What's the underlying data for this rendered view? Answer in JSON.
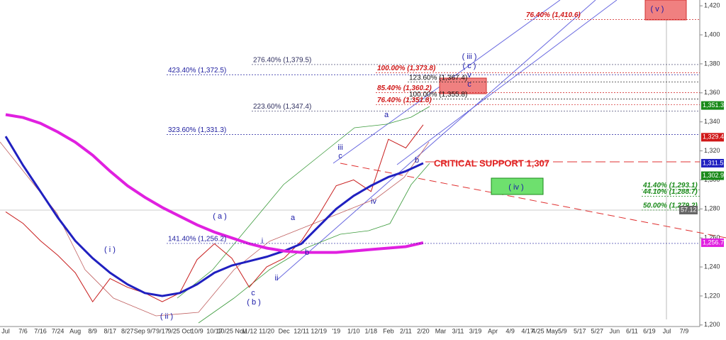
{
  "chart_data": {
    "type": "line",
    "x": [
      "Jul",
      "7/6",
      "7/16",
      "7/24",
      "Aug",
      "8/9",
      "8/17",
      "8/27",
      "Sep 9/7",
      "9/17",
      "9/25 Oct",
      "10/9",
      "10/17",
      "10/25 Nov",
      "11/12",
      "11/20",
      "Dec",
      "12/11",
      "12/19",
      "'19",
      "1/10",
      "1/18",
      "Feb",
      "2/11",
      "2/20",
      "Mar",
      "3/11",
      "3/19",
      "Apr",
      "4/9",
      "4/17",
      "4/25 May",
      "5/9",
      "5/17",
      "5/27",
      "Jun",
      "6/11",
      "6/19",
      "Jul",
      "7/9"
    ],
    "series": [
      {
        "color": "#c81e1e",
        "values": [
          1278,
          1270,
          1258,
          1248,
          1236,
          1216,
          1232,
          1226,
          1222,
          1216,
          1222,
          1245,
          1256,
          1246,
          1226,
          1240,
          1246,
          1258,
          1276,
          1296,
          1300,
          1292,
          1328,
          1322,
          1338,
          null,
          null,
          null,
          null,
          null,
          null,
          null,
          null,
          null,
          null,
          null,
          null,
          null,
          null,
          null
        ]
      },
      {
        "color": "#2020c0",
        "values": [
          1330,
          1310,
          1292,
          1274,
          1258,
          1246,
          1236,
          1228,
          1222,
          1220,
          1222,
          1228,
          1236,
          1241,
          1244,
          1247,
          1251,
          1256,
          1268,
          1280,
          1289,
          1296,
          1302,
          1306,
          1311.5,
          null,
          null,
          null,
          null,
          null,
          null,
          null,
          null,
          null,
          null,
          null,
          null,
          null,
          null,
          null
        ]
      },
      {
        "color": "#e020e0",
        "values": [
          1345,
          1343,
          1339,
          1333,
          1326,
          1317,
          1306,
          1296,
          1288,
          1281,
          1275,
          1269,
          1264,
          1260,
          1256,
          1253,
          1251,
          1250,
          1250,
          1250,
          1251,
          1252,
          1253,
          1254,
          1256.7,
          null,
          null,
          null,
          null,
          null,
          null,
          null,
          null,
          null,
          null,
          null,
          null,
          null,
          null,
          null
        ]
      }
    ],
    "ylim": [
      1196,
      1424
    ],
    "yticks": [
      {
        "value": 1200,
        "label": "1,200"
      },
      {
        "value": 1220,
        "label": "1,220"
      },
      {
        "value": 1240,
        "label": "1,240"
      },
      {
        "value": 1260,
        "label": "1,260"
      },
      {
        "value": 1280,
        "label": "1,280"
      },
      {
        "value": 1300,
        "label": "1,300"
      },
      {
        "value": 1320,
        "label": "1,320"
      },
      {
        "value": 1340,
        "label": "1,340"
      },
      {
        "value": 1360,
        "label": "1,360"
      },
      {
        "value": 1380,
        "label": "1,380"
      },
      {
        "value": 1400,
        "label": "1,400"
      },
      {
        "value": 1420,
        "label": "1,420"
      }
    ],
    "annotations": [
      {
        "text": "76.40% (1,410.6)",
        "value": 1410.6,
        "color": "#d01818"
      },
      {
        "text": "276.40% (1,379.5)",
        "value": 1379.5,
        "color": "#303060"
      },
      {
        "text": "100.00% (1,373.8)",
        "value": 1373.8,
        "color": "#d01818"
      },
      {
        "text": "423.40% (1,372.5)",
        "value": 1372.5,
        "color": "#2020a0"
      },
      {
        "text": "123.60% (1,367.4)",
        "value": 1367.4,
        "color": "#111111"
      },
      {
        "text": "85.40% (1,360.2)",
        "value": 1360.2,
        "color": "#d01818"
      },
      {
        "text": "100.00% (1,355.8)",
        "value": 1355.8,
        "color": "#111111"
      },
      {
        "text": "76.40% (1,351.8)",
        "value": 1351.8,
        "color": "#d01818"
      },
      {
        "text": "223.60% (1,347.4)",
        "value": 1347.4,
        "color": "#303060"
      },
      {
        "text": "323.60% (1,331.3)",
        "value": 1331.3,
        "color": "#2020a0"
      },
      {
        "text": "41.40% (1,293.1)",
        "value": 1293.1,
        "color": "#1a8a1a"
      },
      {
        "text": "44.10% (1,288.7)",
        "value": 1288.7,
        "color": "#1a8a1a"
      },
      {
        "text": "50.00% (1,279.2)",
        "value": 1279.2,
        "color": "#1a8a1a"
      },
      {
        "text": "141.40% (1,256.2)",
        "value": 1256.2,
        "color": "#2020a0"
      }
    ],
    "support": {
      "text": "CRITICAL SUPPORT 1,307",
      "value": 1307
    },
    "wave_labels": [
      "( i )",
      "( ii )",
      "( a )",
      "( b )",
      "c",
      "i",
      "ii",
      "iii",
      "c",
      "a",
      "b",
      "iv",
      "a",
      "b",
      "( iii )",
      "( c )",
      "v",
      "c",
      "( v )",
      "( iv )"
    ],
    "price_tags": [
      {
        "value": 1351.3,
        "label": "1,351.3",
        "color": "#1a8a1a"
      },
      {
        "value": 1329.4,
        "label": "1,329.4",
        "color": "#d01818"
      },
      {
        "value": 1311.5,
        "label": "1,311.5",
        "color": "#2020c0"
      },
      {
        "value": 1302.9,
        "label": "1,302.9",
        "color": "#1a8a1a"
      },
      {
        "value": 1256.7,
        "label": "1,256.7",
        "color": "#e020e0"
      }
    ],
    "indicator_tag": "57.12"
  }
}
